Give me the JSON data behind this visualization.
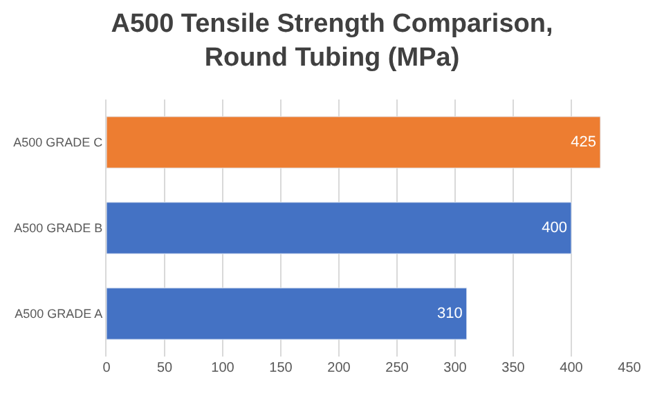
{
  "chart_data": {
    "type": "bar",
    "orientation": "horizontal",
    "title": "A500 Tensile Strength Comparison,\nRound Tubing (MPa)",
    "categories": [
      "A500 GRADE C",
      "A500 GRADE B",
      "A500 GRADE A"
    ],
    "values": [
      425,
      400,
      310
    ],
    "colors": [
      "#ed7d31",
      "#4472c4",
      "#4472c4"
    ],
    "xlim": [
      0,
      450
    ],
    "xticks": [
      0,
      50,
      100,
      150,
      200,
      250,
      300,
      350,
      400,
      450
    ],
    "grid": "x",
    "data_labels": true,
    "legend": false
  }
}
